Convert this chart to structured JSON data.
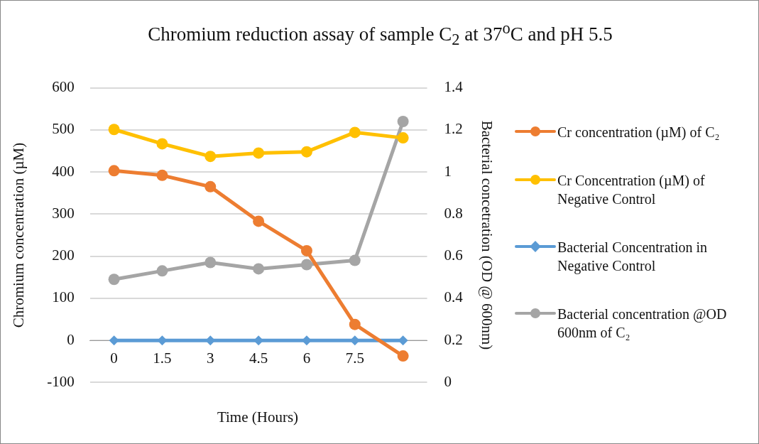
{
  "chart_data": {
    "type": "line",
    "title": "Chromium reduction assay of sample C$_{2}$ at 37$^{o}$C and pH 5.5",
    "xlabel": "Time (Hours)",
    "ylabel": "Chromium concentration (µM)",
    "y2label": "Bacterial concetration (OD @ 600nm)",
    "categories": [
      "0",
      "1.5",
      "3",
      "4.5",
      "6",
      "7.5",
      null
    ],
    "series": [
      {
        "name": "Cr concentration (µM) of C₂",
        "color": "#ed7d31",
        "marker": "circle",
        "values": [
          403,
          392,
          365,
          283,
          213,
          38,
          -37
        ]
      },
      {
        "name": "Cr Concentration (µM) of Negative Control",
        "color": "#ffc000",
        "marker": "circle",
        "values": [
          501,
          467,
          437,
          445,
          448,
          494,
          481
        ]
      },
      {
        "name": "Bacterial Concentration in Negative Control",
        "color": "#5b9bd5",
        "marker": "diamond",
        "values": [
          0,
          0,
          0,
          0,
          0,
          0,
          0
        ]
      },
      {
        "name": "Bacterial concentration @OD 600nm of C₂",
        "color": "#a5a5a5",
        "marker": "circle",
        "axis": "y2",
        "values": [
          0.49,
          0.53,
          0.57,
          0.54,
          0.56,
          0.58,
          1.24
        ]
      }
    ],
    "ylim": [
      -100,
      600
    ],
    "yticks": [
      -100,
      0,
      100,
      200,
      300,
      400,
      500,
      600
    ],
    "y2lim": [
      0,
      1.4
    ],
    "y2ticks": [
      0,
      0.2,
      0.4,
      0.6,
      0.8,
      1,
      1.2,
      1.4
    ],
    "grid": "y",
    "legend": "right"
  }
}
